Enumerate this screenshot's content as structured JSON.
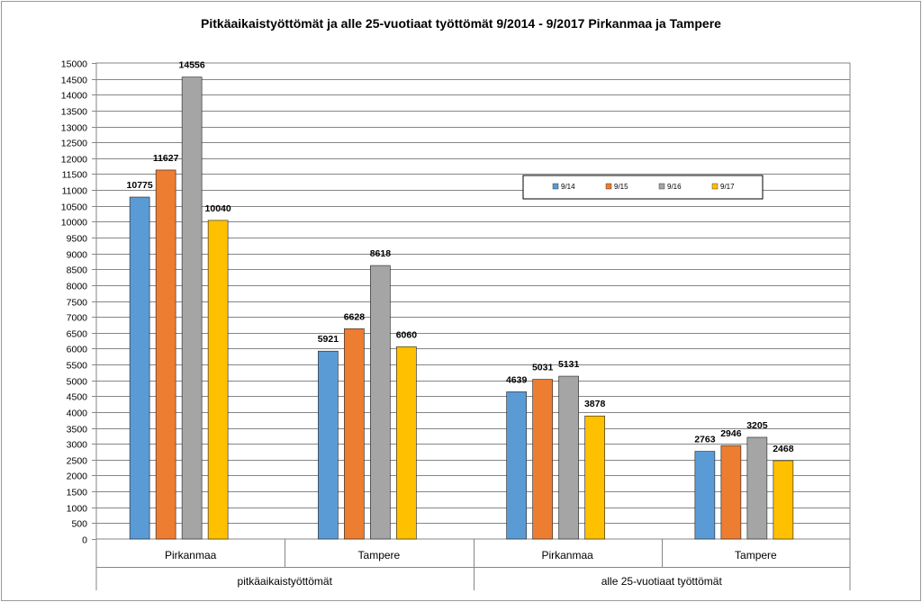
{
  "chart_data": {
    "type": "bar",
    "title": "Pitkäaikaistyöttömät ja alle 25-vuotiaat työttömät 9/2014 - 9/2017 Pirkanmaa ja Tampere",
    "categories": [
      "Pirkanmaa",
      "Tampere",
      "Pirkanmaa",
      "Tampere"
    ],
    "groups": [
      {
        "label": "pitkäaikaistyöttömät",
        "span": 2
      },
      {
        "label": "alle 25-vuotiaat työttömät",
        "span": 2
      }
    ],
    "series": [
      {
        "name": "9/14",
        "color": "#5b9bd5",
        "values": [
          10775,
          5921,
          4639,
          2763
        ]
      },
      {
        "name": "9/15",
        "color": "#ed7d31",
        "values": [
          11627,
          6628,
          5031,
          2946
        ]
      },
      {
        "name": "9/16",
        "color": "#a5a5a5",
        "values": [
          14556,
          8618,
          5131,
          3205
        ]
      },
      {
        "name": "9/17",
        "color": "#ffc000",
        "values": [
          10040,
          6060,
          3878,
          2468
        ]
      }
    ],
    "ylim": [
      0,
      15000
    ],
    "ytick_step": 500,
    "grid": true,
    "legend_position": "upper-right inside plot"
  }
}
